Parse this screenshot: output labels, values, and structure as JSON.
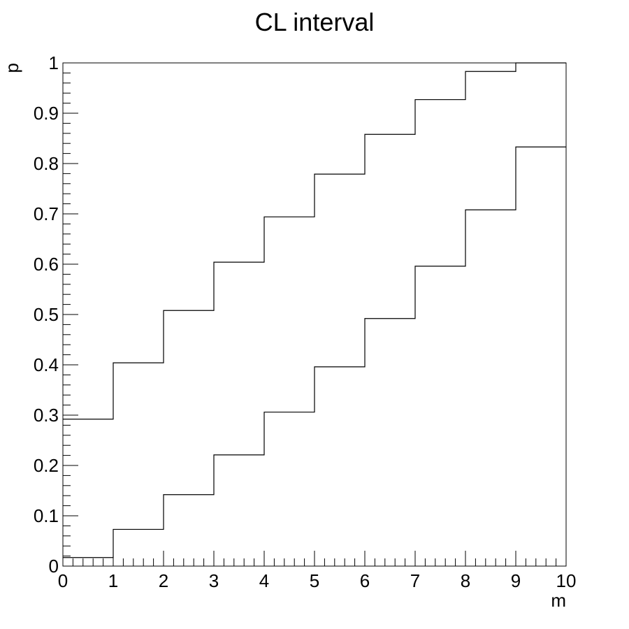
{
  "chart_data": {
    "type": "line",
    "style": "step",
    "title": "CL interval",
    "xlabel": "m",
    "ylabel": "p",
    "xlim": [
      0,
      10
    ],
    "ylim": [
      0,
      1
    ],
    "grid": false,
    "x_ticks": [
      "0",
      "1",
      "2",
      "3",
      "4",
      "5",
      "6",
      "7",
      "8",
      "9",
      "10"
    ],
    "y_ticks": [
      "0",
      "0.1",
      "0.2",
      "0.3",
      "0.4",
      "0.5",
      "0.6",
      "0.7",
      "0.8",
      "0.9",
      "1"
    ],
    "bin_edges": [
      0,
      1,
      2,
      3,
      4,
      5,
      6,
      7,
      8,
      9,
      10
    ],
    "series": [
      {
        "values": [
          0.017,
          0.073,
          0.142,
          0.221,
          0.306,
          0.396,
          0.492,
          0.596,
          0.708,
          0.833
        ]
      },
      {
        "values": [
          0.292,
          0.404,
          0.508,
          0.604,
          0.694,
          0.779,
          0.858,
          0.927,
          0.983,
          1.0
        ]
      }
    ],
    "line_color": "#000000"
  }
}
